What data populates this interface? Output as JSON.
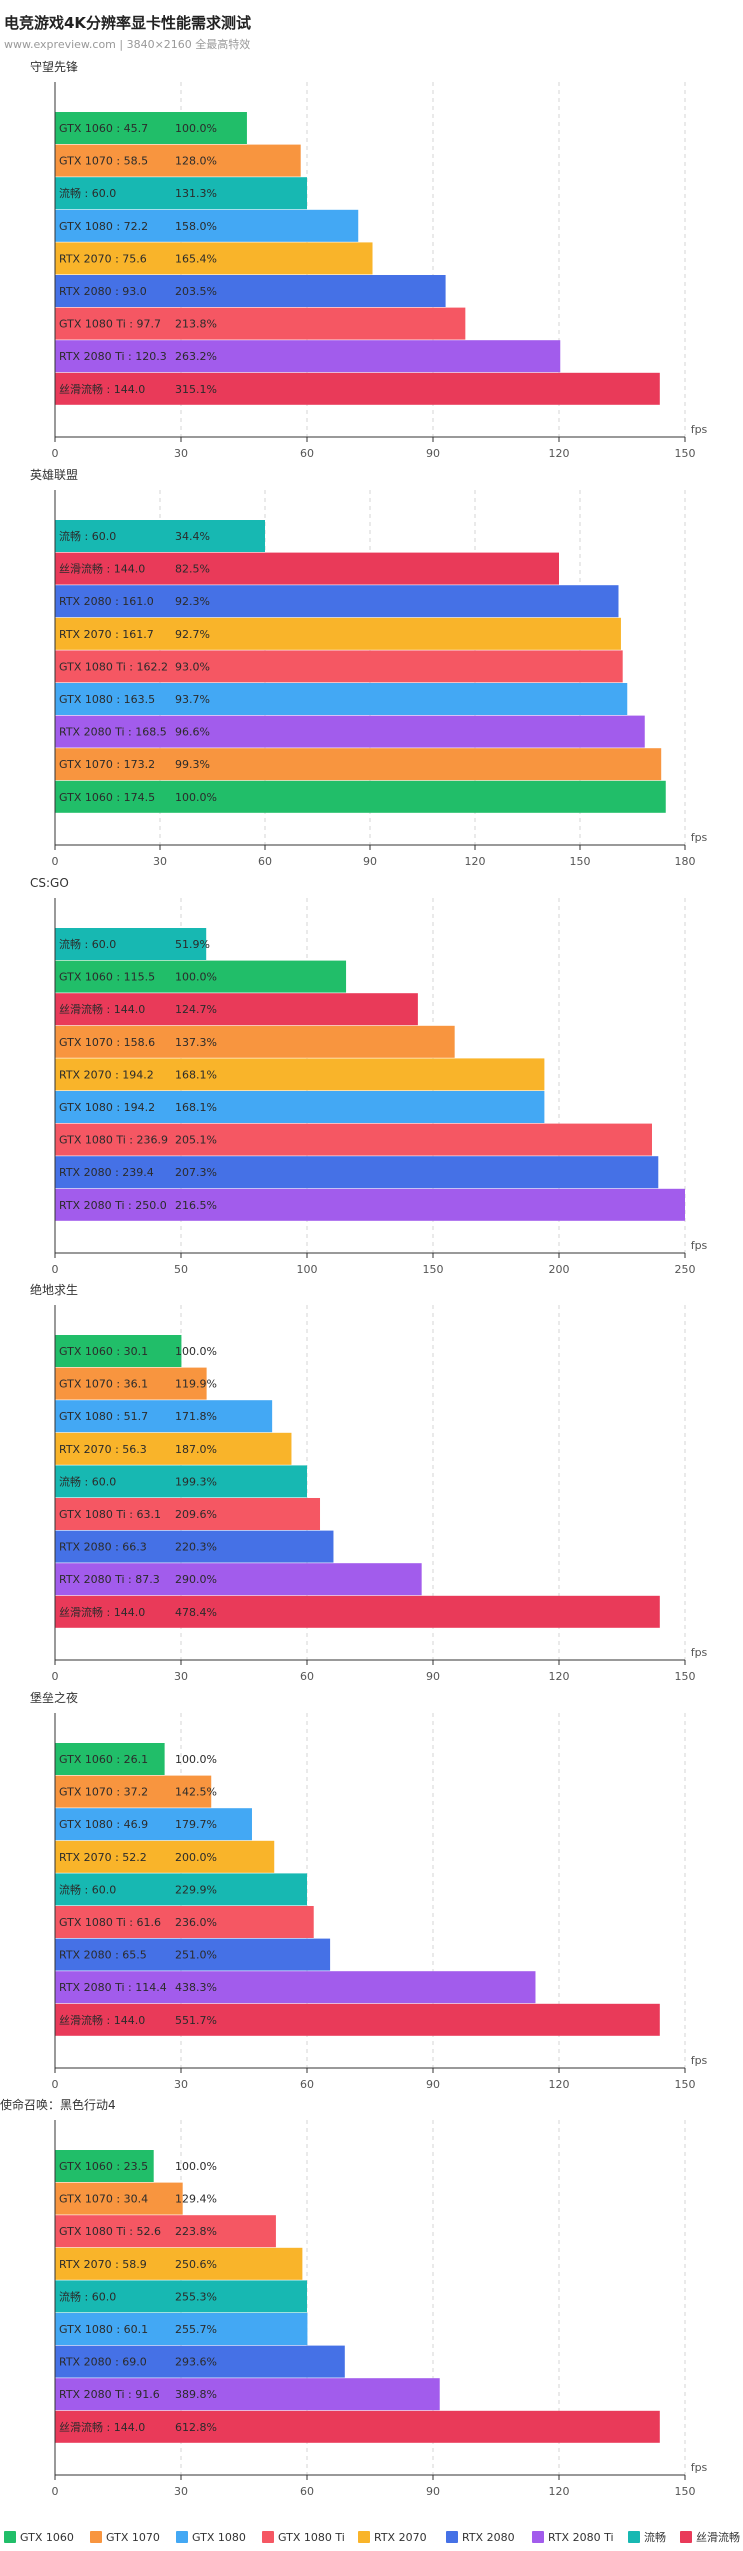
{
  "header": {
    "title": "电竞游戏4K分辨率显卡性能需求测试",
    "subtitle": "www.expreview.com | 3840×2160 全最高特效"
  },
  "axis_unit": "fps",
  "colors": {
    "GTX 1060": "#21be69",
    "GTX 1070": "#f8953f",
    "GTX 1080": "#43a8f4",
    "GTX 1080 Ti": "#f55763",
    "RTX 2070": "#f9b42a",
    "RTX 2080": "#4571e6",
    "RTX 2080 Ti": "#a25cec",
    "流畅": "#17b8b2",
    "丝滑流畅": "#e93a59"
  },
  "legend": [
    "GTX 1060",
    "GTX 1070",
    "GTX 1080",
    "GTX 1080 Ti",
    "RTX 2070",
    "RTX 2080",
    "RTX 2080 Ti",
    "流畅",
    "丝滑流畅"
  ],
  "chart_data": [
    {
      "type": "bar",
      "title": "守望先锋",
      "xlim": [
        0,
        150
      ],
      "xticks": [
        0,
        30,
        60,
        90,
        120,
        150
      ],
      "bars": [
        {
          "name": "GTX 1060",
          "value": 45.7,
          "pct": "100.0%"
        },
        {
          "name": "GTX 1070",
          "value": 58.5,
          "pct": "128.0%"
        },
        {
          "name": "流畅",
          "value": 60.0,
          "pct": "131.3%"
        },
        {
          "name": "GTX 1080",
          "value": 72.2,
          "pct": "158.0%"
        },
        {
          "name": "RTX 2070",
          "value": 75.6,
          "pct": "165.4%"
        },
        {
          "name": "RTX 2080",
          "value": 93.0,
          "pct": "203.5%"
        },
        {
          "name": "GTX 1080 Ti",
          "value": 97.7,
          "pct": "213.8%"
        },
        {
          "name": "RTX 2080 Ti",
          "value": 120.3,
          "pct": "263.2%"
        },
        {
          "name": "丝滑流畅",
          "value": 144.0,
          "pct": "315.1%"
        }
      ]
    },
    {
      "type": "bar",
      "title": "英雄联盟",
      "xlim": [
        0,
        180
      ],
      "xticks": [
        0,
        30,
        60,
        90,
        120,
        150,
        180
      ],
      "bars": [
        {
          "name": "流畅",
          "value": 60.0,
          "pct": "34.4%"
        },
        {
          "name": "丝滑流畅",
          "value": 144.0,
          "pct": "82.5%"
        },
        {
          "name": "RTX 2080",
          "value": 161.0,
          "pct": "92.3%"
        },
        {
          "name": "RTX 2070",
          "value": 161.7,
          "pct": "92.7%"
        },
        {
          "name": "GTX 1080 Ti",
          "value": 162.2,
          "pct": "93.0%"
        },
        {
          "name": "GTX 1080",
          "value": 163.5,
          "pct": "93.7%"
        },
        {
          "name": "RTX 2080 Ti",
          "value": 168.5,
          "pct": "96.6%"
        },
        {
          "name": "GTX 1070",
          "value": 173.2,
          "pct": "99.3%"
        },
        {
          "name": "GTX 1060",
          "value": 174.5,
          "pct": "100.0%"
        }
      ]
    },
    {
      "type": "bar",
      "title": "CS:GO",
      "xlim": [
        0,
        250
      ],
      "xticks": [
        0,
        50,
        100,
        150,
        200,
        250
      ],
      "bars": [
        {
          "name": "流畅",
          "value": 60.0,
          "pct": "51.9%"
        },
        {
          "name": "GTX 1060",
          "value": 115.5,
          "pct": "100.0%"
        },
        {
          "name": "丝滑流畅",
          "value": 144.0,
          "pct": "124.7%"
        },
        {
          "name": "GTX 1070",
          "value": 158.6,
          "pct": "137.3%"
        },
        {
          "name": "RTX 2070",
          "value": 194.2,
          "pct": "168.1%"
        },
        {
          "name": "GTX 1080",
          "value": 194.2,
          "pct": "168.1%"
        },
        {
          "name": "GTX 1080 Ti",
          "value": 236.9,
          "pct": "205.1%"
        },
        {
          "name": "RTX 2080",
          "value": 239.4,
          "pct": "207.3%"
        },
        {
          "name": "RTX 2080 Ti",
          "value": 250.0,
          "pct": "216.5%"
        }
      ]
    },
    {
      "type": "bar",
      "title": "绝地求生",
      "xlim": [
        0,
        150
      ],
      "xticks": [
        0,
        30,
        60,
        90,
        120,
        150
      ],
      "bars": [
        {
          "name": "GTX 1060",
          "value": 30.1,
          "pct": "100.0%"
        },
        {
          "name": "GTX 1070",
          "value": 36.1,
          "pct": "119.9%"
        },
        {
          "name": "GTX 1080",
          "value": 51.7,
          "pct": "171.8%"
        },
        {
          "name": "RTX 2070",
          "value": 56.3,
          "pct": "187.0%"
        },
        {
          "name": "流畅",
          "value": 60.0,
          "pct": "199.3%"
        },
        {
          "name": "GTX 1080 Ti",
          "value": 63.1,
          "pct": "209.6%"
        },
        {
          "name": "RTX 2080",
          "value": 66.3,
          "pct": "220.3%"
        },
        {
          "name": "RTX 2080 Ti",
          "value": 87.3,
          "pct": "290.0%"
        },
        {
          "name": "丝滑流畅",
          "value": 144.0,
          "pct": "478.4%"
        }
      ]
    },
    {
      "type": "bar",
      "title": "堡垒之夜",
      "xlim": [
        0,
        150
      ],
      "xticks": [
        0,
        30,
        60,
        90,
        120,
        150
      ],
      "bars": [
        {
          "name": "GTX 1060",
          "value": 26.1,
          "pct": "100.0%"
        },
        {
          "name": "GTX 1070",
          "value": 37.2,
          "pct": "142.5%"
        },
        {
          "name": "GTX 1080",
          "value": 46.9,
          "pct": "179.7%"
        },
        {
          "name": "RTX 2070",
          "value": 52.2,
          "pct": "200.0%"
        },
        {
          "name": "流畅",
          "value": 60.0,
          "pct": "229.9%"
        },
        {
          "name": "GTX 1080 Ti",
          "value": 61.6,
          "pct": "236.0%"
        },
        {
          "name": "RTX 2080",
          "value": 65.5,
          "pct": "251.0%"
        },
        {
          "name": "RTX 2080 Ti",
          "value": 114.4,
          "pct": "438.3%"
        },
        {
          "name": "丝滑流畅",
          "value": 144.0,
          "pct": "551.7%"
        }
      ]
    },
    {
      "type": "bar",
      "title": "使命召唤：黑色行动4",
      "xlim": [
        0,
        150
      ],
      "xticks": [
        0,
        30,
        60,
        90,
        120,
        150
      ],
      "bars": [
        {
          "name": "GTX 1060",
          "value": 23.5,
          "pct": "100.0%"
        },
        {
          "name": "GTX 1070",
          "value": 30.4,
          "pct": "129.4%"
        },
        {
          "name": "GTX 1080 Ti",
          "value": 52.6,
          "pct": "223.8%"
        },
        {
          "name": "RTX 2070",
          "value": 58.9,
          "pct": "250.6%"
        },
        {
          "name": "流畅",
          "value": 60.0,
          "pct": "255.3%"
        },
        {
          "name": "GTX 1080",
          "value": 60.1,
          "pct": "255.7%"
        },
        {
          "name": "RTX 2080",
          "value": 69.0,
          "pct": "293.6%"
        },
        {
          "name": "RTX 2080 Ti",
          "value": 91.6,
          "pct": "389.8%"
        },
        {
          "name": "丝滑流畅",
          "value": 144.0,
          "pct": "612.8%"
        }
      ]
    }
  ]
}
